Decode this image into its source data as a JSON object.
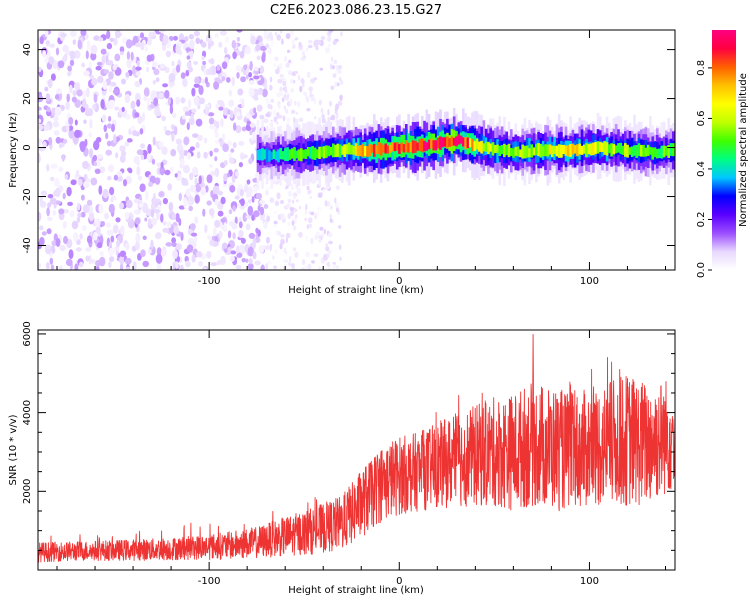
{
  "title": "C2E6.2023.086.23.15.G27",
  "chart_data": [
    {
      "type": "heatmap",
      "title": "C2E6.2023.086.23.15.G27",
      "xlabel": "Height of straight line (km)",
      "ylabel": "Frequency (Hz)",
      "xlim": [
        -190,
        145
      ],
      "ylim": [
        -50,
        48
      ],
      "x_ticks": [
        -100,
        0,
        100
      ],
      "y_ticks": [
        -40,
        -20,
        0,
        20,
        40
      ],
      "colorbar": {
        "label": "Normalized spectral amplitude",
        "range": [
          0,
          0.95
        ],
        "ticks": [
          0.0,
          0.2,
          0.4,
          0.6,
          0.8
        ],
        "colormap": [
          "#ffffff",
          "#e8d8ff",
          "#9b4dff",
          "#5a00ff",
          "#0000ff",
          "#00c8ff",
          "#00ff80",
          "#40ff00",
          "#c0ff00",
          "#ffff00",
          "#ffc000",
          "#ff6000",
          "#ff0040",
          "#ff0080"
        ]
      },
      "ridge": {
        "x": [
          -75,
          -60,
          -45,
          -30,
          -15,
          0,
          15,
          30,
          45,
          60,
          75,
          90,
          105,
          120,
          135,
          145
        ],
        "frequency": [
          -3,
          -3,
          -2,
          -1,
          -1,
          0,
          1,
          3,
          0,
          -2,
          -1,
          -1,
          0,
          -1,
          -2,
          -1
        ],
        "amplitude": [
          0.35,
          0.45,
          0.5,
          0.55,
          0.75,
          0.85,
          0.85,
          0.9,
          0.6,
          0.55,
          0.6,
          0.65,
          0.6,
          0.55,
          0.5,
          0.5
        ]
      },
      "noise_region": {
        "x_start": -190,
        "x_end": -70,
        "amplitude_range": [
          0.02,
          0.12
        ]
      },
      "sparse_region": {
        "x_start": -70,
        "x_end": -30,
        "amplitude_range": [
          0.01,
          0.08
        ]
      }
    },
    {
      "type": "line",
      "xlabel": "Height of straight line (km)",
      "ylabel": "SNR (10 * v/v)",
      "xlim": [
        -190,
        145
      ],
      "ylim": [
        0,
        6100
      ],
      "x_ticks": [
        -100,
        0,
        100
      ],
      "y_ticks": [
        2000,
        4000,
        6000
      ],
      "color": "#ee3333",
      "series": [
        {
          "x": [
            -190,
            -170,
            -150,
            -130,
            -110,
            -90,
            -75,
            -60,
            -45,
            -30,
            -20,
            -10,
            0,
            10,
            20,
            30,
            40,
            50,
            60,
            70,
            80,
            90,
            100,
            110,
            120,
            130,
            140,
            145
          ],
          "mean": [
            450,
            480,
            500,
            520,
            560,
            620,
            700,
            850,
            1000,
            1200,
            1700,
            2200,
            2400,
            2500,
            2650,
            2800,
            2900,
            3000,
            3000,
            3200,
            3100,
            3000,
            3100,
            3200,
            3300,
            3200,
            3400,
            3500
          ],
          "spread": [
            250,
            250,
            260,
            280,
            300,
            350,
            400,
            500,
            600,
            700,
            900,
            1000,
            1000,
            1000,
            1100,
            1200,
            1300,
            1400,
            1500,
            1600,
            1600,
            1500,
            1500,
            1600,
            1700,
            1600,
            1500,
            1500
          ],
          "peak": [
            850,
            900,
            950,
            1050,
            1200,
            1300,
            1400,
            1700,
            1850,
            1900,
            2500,
            3000,
            3400,
            3900,
            4300,
            4600,
            4700,
            5200,
            5600,
            6100,
            5500,
            5000,
            5200,
            5800,
            5900,
            5400,
            5200,
            4800
          ]
        }
      ]
    }
  ]
}
